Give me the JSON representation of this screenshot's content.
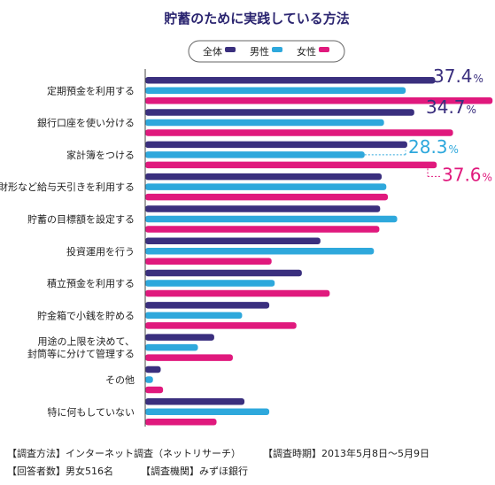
{
  "colors": {
    "all": "#3a2f7e",
    "male": "#2ea8dc",
    "female": "#e0197d",
    "title": "#2b2570",
    "axis": "#444444"
  },
  "chart_data": {
    "type": "bar",
    "orientation": "horizontal",
    "title": "貯蓄のために実践している方法",
    "legend_position": "top-center",
    "series": [
      {
        "name": "全体",
        "values": [
          37.4,
          34.7,
          33.8,
          30.5,
          30.3,
          22.6,
          20.2,
          16.0,
          8.9,
          2.0,
          12.8
        ]
      },
      {
        "name": "男性",
        "values": [
          33.6,
          30.8,
          28.3,
          31.1,
          32.5,
          29.5,
          16.7,
          12.5,
          6.8,
          1.0,
          16.0
        ]
      },
      {
        "name": "女性",
        "values": [
          44.8,
          39.7,
          37.6,
          31.3,
          30.2,
          16.3,
          23.8,
          19.5,
          11.3,
          2.3,
          9.2
        ]
      }
    ],
    "categories": [
      "定期預金を利用する",
      "銀行口座を使い分ける",
      "家計簿をつける",
      "財形など給与天引きを利用する",
      "貯蓄の目標額を設定する",
      "投資運用を行う",
      "積立預金を利用する",
      "貯金箱で小銭を貯める",
      "用途の上限を決めて、\n封筒等に分けて管理する",
      "その他",
      "特に何もしていない"
    ],
    "annotations": [
      {
        "category_index": 0,
        "series": "全体",
        "value_text": "37.4",
        "unit": "%"
      },
      {
        "category_index": 1,
        "series": "全体",
        "value_text": "34.7",
        "unit": "%"
      },
      {
        "category_index": 2,
        "series": "男性",
        "value_text": "28.3",
        "unit": "%"
      },
      {
        "category_index": 2,
        "series": "女性",
        "value_text": "37.6",
        "unit": "%"
      }
    ],
    "xlim": [
      0,
      45
    ],
    "grid": false
  },
  "footer": {
    "line1_left": "【調査方法】インターネット調査（ネットリサーチ）",
    "line1_right": "【調査時期】2013年5月8日〜5月9日",
    "line2_left": "【回答者数】男女516名",
    "line2_right": "【調査機関】みずほ銀行"
  }
}
